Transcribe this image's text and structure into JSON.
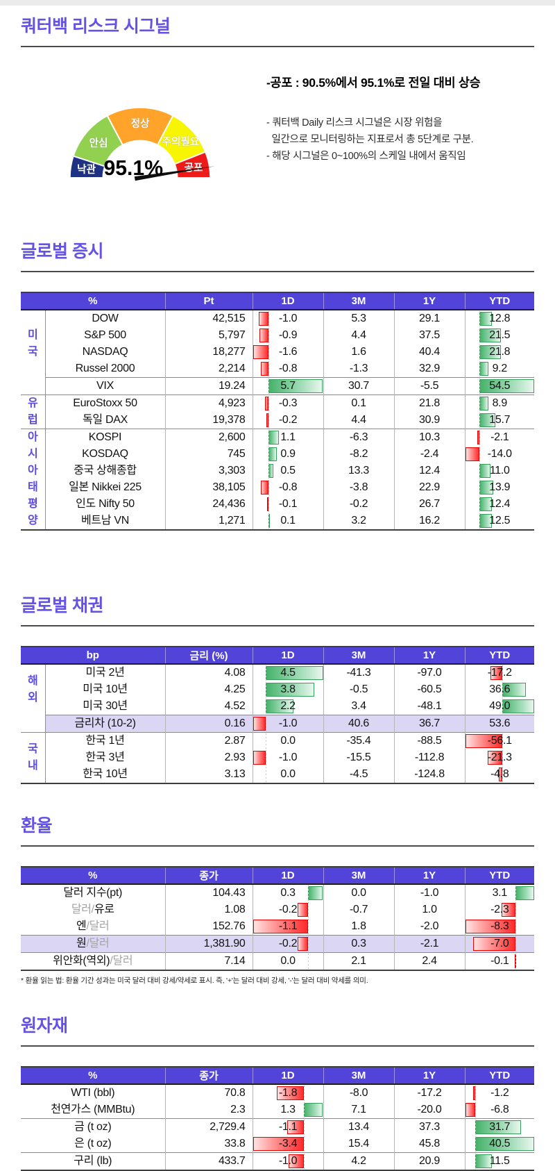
{
  "page": {
    "title": "쿼터백 리스크 시그널"
  },
  "gauge": {
    "value": 95.1,
    "value_label": "95.1%",
    "segments": [
      {
        "label": "낙관",
        "from": 0,
        "to": 10,
        "color": "#1e3182"
      },
      {
        "label": "안심",
        "from": 10,
        "to": 34.5,
        "color": "#92d050"
      },
      {
        "label": "정상",
        "from": 34.5,
        "to": 65.5,
        "color": "#ffa32b"
      },
      {
        "label": "주의필요",
        "from": 65.5,
        "to": 88,
        "color": "#f7f500"
      },
      {
        "label": "공포",
        "from": 88,
        "to": 100,
        "color": "#ee1a1a"
      }
    ],
    "needle_color": "#0e0e0e",
    "scale_min": 0,
    "scale_max": 100
  },
  "commentary": {
    "headline": "-공포 : 90.5%에서 95.1%로 전일 대비 상승",
    "lines": [
      "- 쿼터백 Daily 리스크 시그널은 시장 위험을",
      "  일간으로 모니터링하는 지표로서 총 5단계로 구분.",
      "- 해당 시그널은 0~100%의 스케일 내에서 움직임"
    ]
  },
  "colors": {
    "accent_purple": "#6452e4",
    "table_header_bg": "#5244d8",
    "highlight_row_bg": "#dcd6f5",
    "bar_positive": "#46b26b",
    "bar_negative": "#ff2b2b",
    "group_label": "#5b4be0"
  },
  "tables": [
    {
      "id": "global-equities",
      "section_title": "글로벌 증시",
      "section_class": "s-equity",
      "columns": [
        "%",
        "Pt",
        "1D",
        "3M",
        "1Y",
        "YTD"
      ],
      "has_group_col": true,
      "bar_cols": [
        0,
        3
      ],
      "bar_exclude": {},
      "groups": [
        {
          "label": "미국",
          "rows": 4
        },
        {
          "label": "",
          "rows": 1
        },
        {
          "label": "유럽",
          "rows": 2
        },
        {
          "label": "아시아태평양",
          "rows": 6
        }
      ],
      "rows": [
        {
          "name": "DOW",
          "value": "42,515",
          "changes": [
            -1.0,
            5.3,
            29.1,
            12.8
          ]
        },
        {
          "name": "S&P 500",
          "value": "5,797",
          "changes": [
            -0.9,
            4.4,
            37.5,
            21.5
          ]
        },
        {
          "name": "NASDAQ",
          "value": "18,277",
          "changes": [
            -1.6,
            1.6,
            40.4,
            21.8
          ]
        },
        {
          "name": "Russel 2000",
          "value": "2,214",
          "changes": [
            -0.8,
            -1.3,
            32.9,
            9.2
          ]
        },
        {
          "name": "VIX",
          "value": "19.24",
          "changes": [
            5.7,
            30.7,
            -5.5,
            54.5
          ]
        },
        {
          "name": "EuroStoxx 50",
          "value": "4,923",
          "changes": [
            -0.3,
            0.1,
            21.8,
            8.9
          ]
        },
        {
          "name": "독일 DAX",
          "value": "19,378",
          "changes": [
            -0.2,
            4.4,
            30.9,
            15.7
          ]
        },
        {
          "name": "KOSPI",
          "value": "2,600",
          "changes": [
            1.1,
            -6.3,
            10.3,
            -2.1
          ]
        },
        {
          "name": "KOSDAQ",
          "value": "745",
          "changes": [
            0.9,
            -8.2,
            -2.4,
            -14.0
          ]
        },
        {
          "name": "중국 상해종합",
          "value": "3,303",
          "changes": [
            0.5,
            13.3,
            12.4,
            11.0
          ]
        },
        {
          "name": "일본 Nikkei 225",
          "value": "38,105",
          "changes": [
            -0.8,
            -3.8,
            22.9,
            13.9
          ]
        },
        {
          "name": "인도 Nifty 50",
          "value": "24,436",
          "changes": [
            -0.1,
            -0.2,
            26.7,
            12.4
          ]
        },
        {
          "name": "베트남 VN",
          "value": "1,271",
          "changes": [
            0.1,
            3.2,
            16.2,
            12.5
          ]
        }
      ]
    },
    {
      "id": "global-bonds",
      "section_title": "글로벌 채권",
      "section_class": "s-bond",
      "columns": [
        "bp",
        "금리 (%)",
        "1D",
        "3M",
        "1Y",
        "YTD"
      ],
      "has_group_col": true,
      "bar_cols": [
        0,
        3
      ],
      "bar_exclude": {
        "3": [
          3
        ]
      },
      "groups": [
        {
          "label": "해외",
          "rows": 3
        },
        {
          "label": "",
          "rows": 1
        },
        {
          "label": "국내",
          "rows": 3
        }
      ],
      "rows": [
        {
          "name": "미국 2년",
          "value": "4.08",
          "changes": [
            4.5,
            -41.3,
            -97.0,
            -17.2
          ]
        },
        {
          "name": "미국 10년",
          "value": "4.25",
          "changes": [
            3.8,
            -0.5,
            -60.5,
            36.6
          ]
        },
        {
          "name": "미국 30년",
          "value": "4.52",
          "changes": [
            2.2,
            3.4,
            -48.1,
            49.0
          ]
        },
        {
          "name": "금리차 (10-2)",
          "value": "0.16",
          "changes": [
            -1.0,
            40.6,
            36.7,
            53.6
          ],
          "highlight": true
        },
        {
          "name": "한국 1년",
          "value": "2.87",
          "changes": [
            0.0,
            -35.4,
            -88.5,
            -56.1
          ]
        },
        {
          "name": "한국 3년",
          "value": "2.93",
          "changes": [
            -1.0,
            -15.5,
            -112.8,
            -21.3
          ]
        },
        {
          "name": "한국 10년",
          "value": "3.13",
          "changes": [
            0.0,
            -4.5,
            -124.8,
            -4.8
          ]
        }
      ]
    },
    {
      "id": "fx-rates",
      "section_title": "환율",
      "section_class": "s-fx",
      "columns": [
        "%",
        "종가",
        "1D",
        "3M",
        "1Y",
        "YTD"
      ],
      "has_group_col": false,
      "bar_cols": [
        0,
        3
      ],
      "bar_exclude": {},
      "groups": [
        {
          "label": "",
          "rows": 3
        },
        {
          "label": "",
          "rows": 1
        },
        {
          "label": "",
          "rows": 1
        }
      ],
      "rows": [
        {
          "name": [
            {
              "text": "달러 지수(pt)",
              "dim": false
            }
          ],
          "value": "104.43",
          "changes": [
            0.3,
            0.0,
            -1.0,
            3.1
          ]
        },
        {
          "name": [
            {
              "text": "달러/",
              "dim": true
            },
            {
              "text": "유로",
              "dim": false
            }
          ],
          "value": "1.08",
          "changes": [
            -0.2,
            -0.7,
            1.0,
            -2.3
          ]
        },
        {
          "name": [
            {
              "text": "엔",
              "dim": false
            },
            {
              "text": "/달러",
              "dim": true
            }
          ],
          "value": "152.76",
          "changes": [
            -1.1,
            1.8,
            -2.0,
            -8.3
          ]
        },
        {
          "name": [
            {
              "text": "원",
              "dim": false
            },
            {
              "text": "/달러",
              "dim": true
            }
          ],
          "value": "1,381.90",
          "changes": [
            -0.2,
            0.3,
            -2.1,
            -7.0
          ],
          "highlight": true
        },
        {
          "name": [
            {
              "text": "위안화(역외)",
              "dim": false
            },
            {
              "text": "/달러",
              "dim": true
            }
          ],
          "value": "7.14",
          "changes": [
            0.0,
            2.1,
            2.4,
            -0.1
          ]
        }
      ],
      "footnote": "* 환율 읽는 법: 환율 기간 성과는 미국 달러 대비 강세/약세로 표시. 즉, '+'는 달러 대비 강세, '-'는 달러 대비 약세를 의미."
    },
    {
      "id": "commodities",
      "section_title": "원자재",
      "section_class": "s-cmd",
      "columns": [
        "%",
        "종가",
        "1D",
        "3M",
        "1Y",
        "YTD"
      ],
      "has_group_col": false,
      "bar_cols": [
        0,
        3
      ],
      "bar_exclude": {},
      "groups": [
        {
          "label": "",
          "rows": 2
        },
        {
          "label": "",
          "rows": 2
        },
        {
          "label": "",
          "rows": 1
        }
      ],
      "rows": [
        {
          "name": "WTI (bbl)",
          "value": "70.8",
          "changes": [
            -1.8,
            -8.0,
            -17.2,
            -1.2
          ]
        },
        {
          "name": "천연가스 (MMBtu)",
          "value": "2.3",
          "changes": [
            1.3,
            7.1,
            -20.0,
            -6.8
          ]
        },
        {
          "name": "금 (t oz)",
          "value": "2,729.4",
          "changes": [
            -1.1,
            13.4,
            37.3,
            31.7
          ]
        },
        {
          "name": "은 (t oz)",
          "value": "33.8",
          "changes": [
            -3.4,
            15.4,
            45.8,
            40.5
          ]
        },
        {
          "name": "구리 (lb)",
          "value": "433.7",
          "changes": [
            -1.0,
            4.2,
            20.9,
            11.5
          ]
        }
      ]
    }
  ]
}
